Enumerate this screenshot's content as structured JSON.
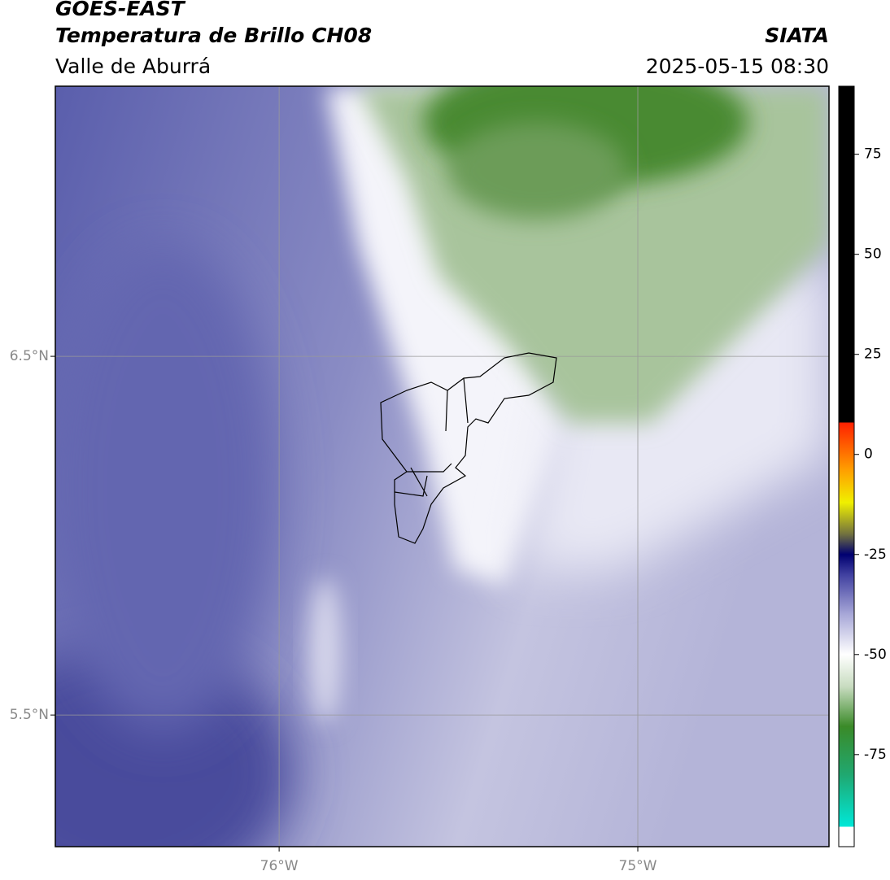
{
  "header": {
    "title": "GOES-EAST",
    "subtitle": "Temperatura de Brillo CH08",
    "region": "Valle de Aburrá",
    "source": "SIATA",
    "datetime": "2025-05-15 08:30"
  },
  "map": {
    "lat_range": [
      5.133,
      7.253
    ],
    "lon_range": [
      -76.624,
      -74.467
    ],
    "lat_ticks": [
      {
        "value": 6.5,
        "label": "6.5°N"
      },
      {
        "value": 5.5,
        "label": "5.5°N"
      }
    ],
    "lon_ticks": [
      {
        "value": -76,
        "label": "76°W"
      },
      {
        "value": -75,
        "label": "75°W"
      }
    ]
  },
  "colorbar": {
    "range": [
      -98,
      92
    ],
    "ticks": [
      75,
      50,
      25,
      0,
      -25,
      -50,
      -75
    ],
    "stops": [
      {
        "value": -98,
        "color": "#ffffff"
      },
      {
        "value": -93,
        "color": "#ffffff"
      },
      {
        "value": -93,
        "color": "#00e8d8"
      },
      {
        "value": -80,
        "color": "#20a870"
      },
      {
        "value": -68,
        "color": "#3a8a28"
      },
      {
        "value": -58,
        "color": "#c8dcc0"
      },
      {
        "value": -50,
        "color": "#ffffff"
      },
      {
        "value": -40,
        "color": "#a8a8d8"
      },
      {
        "value": -30,
        "color": "#4040a0"
      },
      {
        "value": -25,
        "color": "#000070"
      },
      {
        "value": -20,
        "color": "#707040"
      },
      {
        "value": -12,
        "color": "#f0f000"
      },
      {
        "value": -4,
        "color": "#ffa000"
      },
      {
        "value": 8,
        "color": "#ff2000"
      },
      {
        "value": 8,
        "color": "#000000"
      },
      {
        "value": 92,
        "color": "#000000"
      }
    ]
  }
}
